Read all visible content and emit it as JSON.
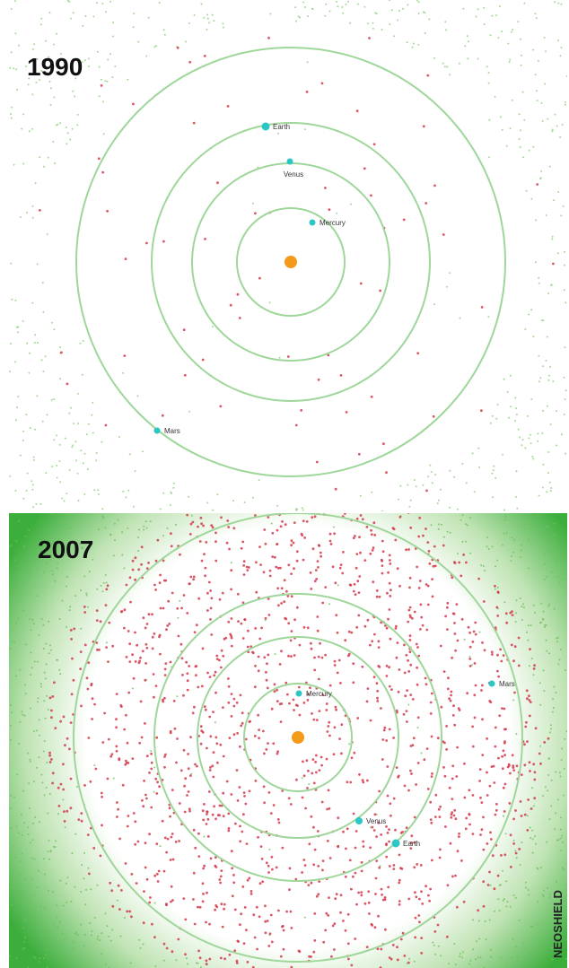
{
  "panels": [
    {
      "year": "1990",
      "planets": [
        {
          "label": "Earth"
        },
        {
          "label": "Venus"
        },
        {
          "label": "Mercury"
        },
        {
          "label": "Mars"
        }
      ]
    },
    {
      "year": "2007",
      "planets": [
        {
          "label": "Mercury"
        },
        {
          "label": "Venus"
        },
        {
          "label": "Earth"
        },
        {
          "label": "Mars"
        }
      ]
    }
  ],
  "credit": "NEOSHIELD"
}
